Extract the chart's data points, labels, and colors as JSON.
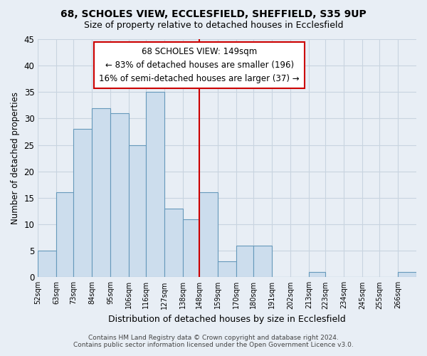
{
  "title": "68, SCHOLES VIEW, ECCLESFIELD, SHEFFIELD, S35 9UP",
  "subtitle": "Size of property relative to detached houses in Ecclesfield",
  "xlabel": "Distribution of detached houses by size in Ecclesfield",
  "ylabel": "Number of detached properties",
  "bin_labels": [
    "52sqm",
    "63sqm",
    "73sqm",
    "84sqm",
    "95sqm",
    "106sqm",
    "116sqm",
    "127sqm",
    "138sqm",
    "148sqm",
    "159sqm",
    "170sqm",
    "180sqm",
    "191sqm",
    "202sqm",
    "213sqm",
    "223sqm",
    "234sqm",
    "245sqm",
    "255sqm",
    "266sqm"
  ],
  "bin_edges": [
    52,
    63,
    73,
    84,
    95,
    106,
    116,
    127,
    138,
    148,
    159,
    170,
    180,
    191,
    202,
    213,
    223,
    234,
    245,
    255,
    266
  ],
  "bar_heights": [
    5,
    16,
    28,
    32,
    31,
    25,
    35,
    13,
    11,
    16,
    3,
    6,
    6,
    0,
    0,
    1,
    0,
    0,
    0,
    0,
    1
  ],
  "bar_color": "#ccdded",
  "bar_edge_color": "#6699bb",
  "vline_x": 148,
  "vline_color": "#cc0000",
  "annotation_title": "68 SCHOLES VIEW: 149sqm",
  "annotation_line1": "← 83% of detached houses are smaller (196)",
  "annotation_line2": "16% of semi-detached houses are larger (37) →",
  "annotation_box_color": "#ffffff",
  "annotation_box_edge": "#cc0000",
  "ylim": [
    0,
    45
  ],
  "yticks": [
    0,
    5,
    10,
    15,
    20,
    25,
    30,
    35,
    40,
    45
  ],
  "footer1": "Contains HM Land Registry data © Crown copyright and database right 2024.",
  "footer2": "Contains public sector information licensed under the Open Government Licence v3.0.",
  "bg_color": "#e8eef5",
  "plot_bg_color": "#e8eef5",
  "grid_color": "#c8d4e0"
}
